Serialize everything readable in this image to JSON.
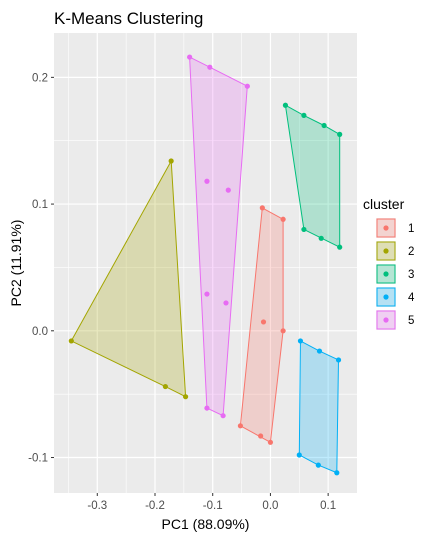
{
  "chart_data": {
    "type": "scatter",
    "title": "K-Means Clustering",
    "xlabel": "PC1 (88.09%)",
    "ylabel": "PC2 (11.91%)",
    "xlim": [
      -0.375,
      0.15
    ],
    "ylim": [
      -0.128,
      0.235
    ],
    "xticks": [
      -0.3,
      -0.2,
      -0.1,
      0.0,
      0.1
    ],
    "xtick_labels": [
      "-0.3",
      "-0.2",
      "-0.1",
      "0.0",
      "0.1"
    ],
    "yticks": [
      -0.1,
      0.0,
      0.1,
      0.2
    ],
    "ytick_labels": [
      "-0.1",
      "0.0",
      "0.1",
      "0.2"
    ],
    "grid": true,
    "legend": {
      "title": "cluster",
      "placement": "right",
      "entries": [
        "1",
        "2",
        "3",
        "4",
        "5"
      ]
    },
    "hulls": "convex hull polygon drawn around each cluster",
    "series": [
      {
        "name": "1",
        "color": "#F8766D",
        "points": [
          [
            -0.014,
            0.097
          ],
          [
            0.022,
            0.088
          ],
          [
            0.022,
            0.0
          ],
          [
            -0.012,
            0.007
          ],
          [
            -0.052,
            -0.075
          ],
          [
            -0.017,
            -0.083
          ],
          [
            0.0,
            -0.088
          ]
        ],
        "hull": [
          [
            -0.014,
            0.097
          ],
          [
            0.022,
            0.088
          ],
          [
            0.022,
            0.0
          ],
          [
            0.0,
            -0.088
          ],
          [
            -0.052,
            -0.075
          ]
        ]
      },
      {
        "name": "2",
        "color": "#A3A500",
        "points": [
          [
            -0.172,
            0.134
          ],
          [
            -0.345,
            -0.008
          ],
          [
            -0.182,
            -0.044
          ],
          [
            -0.147,
            -0.052
          ]
        ],
        "hull": [
          [
            -0.172,
            0.134
          ],
          [
            -0.147,
            -0.052
          ],
          [
            -0.182,
            -0.044
          ],
          [
            -0.345,
            -0.008
          ]
        ]
      },
      {
        "name": "3",
        "color": "#00BF7D",
        "points": [
          [
            0.026,
            0.178
          ],
          [
            0.058,
            0.17
          ],
          [
            0.093,
            0.162
          ],
          [
            0.12,
            0.155
          ],
          [
            0.058,
            0.08
          ],
          [
            0.088,
            0.073
          ],
          [
            0.12,
            0.066
          ]
        ],
        "hull": [
          [
            0.026,
            0.178
          ],
          [
            0.058,
            0.17
          ],
          [
            0.093,
            0.162
          ],
          [
            0.12,
            0.155
          ],
          [
            0.12,
            0.066
          ],
          [
            0.058,
            0.08
          ]
        ]
      },
      {
        "name": "4",
        "color": "#00B0F6",
        "points": [
          [
            0.052,
            -0.008
          ],
          [
            0.085,
            -0.016
          ],
          [
            0.118,
            -0.023
          ],
          [
            0.05,
            -0.098
          ],
          [
            0.083,
            -0.106
          ],
          [
            0.115,
            -0.112
          ]
        ],
        "hull": [
          [
            0.052,
            -0.008
          ],
          [
            0.085,
            -0.016
          ],
          [
            0.118,
            -0.023
          ],
          [
            0.115,
            -0.112
          ],
          [
            0.083,
            -0.106
          ],
          [
            0.05,
            -0.098
          ]
        ]
      },
      {
        "name": "5",
        "color": "#E76BF3",
        "points": [
          [
            -0.14,
            0.216
          ],
          [
            -0.105,
            0.208
          ],
          [
            -0.04,
            0.193
          ],
          [
            -0.11,
            0.118
          ],
          [
            -0.073,
            0.111
          ],
          [
            -0.11,
            0.029
          ],
          [
            -0.077,
            0.022
          ],
          [
            -0.11,
            -0.061
          ],
          [
            -0.082,
            -0.067
          ]
        ],
        "hull": [
          [
            -0.14,
            0.216
          ],
          [
            -0.105,
            0.208
          ],
          [
            -0.04,
            0.193
          ],
          [
            -0.082,
            -0.067
          ],
          [
            -0.11,
            -0.061
          ]
        ]
      }
    ]
  }
}
